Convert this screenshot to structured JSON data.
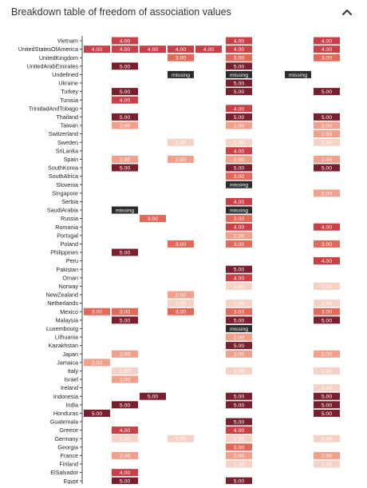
{
  "header": {
    "title": "Breakdown table of freedom of association values",
    "collapse_icon": "chevron-up-icon"
  },
  "colors": {
    "v1": "#f6d2c6",
    "v2": "#f2a08c",
    "v3": "#e2685a",
    "v4": "#c94046",
    "v5": "#7a1f2d",
    "missing": "#2b2b2b",
    "axis": "#444444",
    "label_text": "#ffffff"
  },
  "chart_data": {
    "type": "table",
    "title": "Breakdown table of freedom of association values",
    "missing_label": "missing",
    "rows": [
      {
        "country": "Vietnam",
        "values": [
          null,
          4,
          null,
          null,
          null,
          4,
          null,
          null,
          4
        ]
      },
      {
        "country": "UnitedStatesOfAmerica",
        "values": [
          4,
          4,
          4,
          4,
          4,
          4,
          null,
          null,
          4
        ]
      },
      {
        "country": "UnitedKingdom",
        "values": [
          null,
          null,
          null,
          3,
          null,
          3,
          null,
          null,
          3
        ]
      },
      {
        "country": "UnitedArabEmirates",
        "values": [
          null,
          5,
          null,
          null,
          null,
          5,
          null,
          null,
          null
        ]
      },
      {
        "country": "Undefined",
        "values": [
          null,
          null,
          null,
          "missing",
          null,
          "missing",
          null,
          "missing",
          null
        ]
      },
      {
        "country": "Ukraine",
        "values": [
          null,
          null,
          null,
          null,
          null,
          5,
          null,
          null,
          null
        ]
      },
      {
        "country": "Turkey",
        "values": [
          null,
          5,
          null,
          null,
          null,
          5,
          null,
          null,
          5
        ]
      },
      {
        "country": "Tunisia",
        "values": [
          null,
          4,
          null,
          null,
          null,
          null,
          null,
          null,
          null
        ]
      },
      {
        "country": "TrinidadAndTobago",
        "values": [
          null,
          null,
          null,
          null,
          null,
          4,
          null,
          null,
          null
        ]
      },
      {
        "country": "Thailand",
        "values": [
          null,
          5,
          null,
          null,
          null,
          5,
          null,
          null,
          5
        ]
      },
      {
        "country": "Taiwan",
        "values": [
          null,
          2,
          null,
          null,
          null,
          2,
          null,
          null,
          2
        ]
      },
      {
        "country": "Switzerland",
        "values": [
          null,
          null,
          null,
          null,
          null,
          null,
          null,
          null,
          2
        ]
      },
      {
        "country": "Sweden",
        "values": [
          null,
          null,
          null,
          1,
          null,
          1,
          null,
          null,
          1
        ]
      },
      {
        "country": "SriLanka",
        "values": [
          null,
          null,
          null,
          null,
          null,
          4,
          null,
          null,
          null
        ]
      },
      {
        "country": "Spain",
        "values": [
          null,
          2,
          null,
          2,
          null,
          2,
          null,
          null,
          2
        ]
      },
      {
        "country": "SouthKorea",
        "values": [
          null,
          5,
          null,
          null,
          null,
          5,
          null,
          null,
          5
        ]
      },
      {
        "country": "SouthAfrica",
        "values": [
          null,
          null,
          null,
          null,
          null,
          3,
          null,
          null,
          null
        ]
      },
      {
        "country": "Slovenia",
        "values": [
          null,
          null,
          null,
          null,
          null,
          "missing",
          null,
          null,
          null
        ]
      },
      {
        "country": "Singapore",
        "values": [
          null,
          null,
          null,
          null,
          null,
          null,
          null,
          null,
          2
        ]
      },
      {
        "country": "Serbia",
        "values": [
          null,
          null,
          null,
          null,
          null,
          4,
          null,
          null,
          null
        ]
      },
      {
        "country": "SaudiArabia",
        "values": [
          null,
          "missing",
          null,
          null,
          null,
          "missing",
          null,
          null,
          null
        ]
      },
      {
        "country": "Russia",
        "values": [
          null,
          null,
          3,
          null,
          null,
          3,
          null,
          null,
          null
        ]
      },
      {
        "country": "Romania",
        "values": [
          null,
          null,
          null,
          null,
          null,
          4,
          null,
          null,
          4
        ]
      },
      {
        "country": "Portugal",
        "values": [
          null,
          null,
          null,
          null,
          null,
          2,
          null,
          null,
          null
        ]
      },
      {
        "country": "Poland",
        "values": [
          null,
          null,
          null,
          3,
          null,
          3,
          null,
          null,
          3
        ]
      },
      {
        "country": "Philippines",
        "values": [
          null,
          5,
          null,
          null,
          null,
          null,
          null,
          null,
          null
        ]
      },
      {
        "country": "Peru",
        "values": [
          null,
          null,
          null,
          null,
          null,
          null,
          null,
          null,
          4
        ]
      },
      {
        "country": "Pakistan",
        "values": [
          null,
          null,
          null,
          null,
          null,
          5,
          null,
          null,
          null
        ]
      },
      {
        "country": "Oman",
        "values": [
          null,
          null,
          null,
          null,
          null,
          4,
          null,
          null,
          null
        ]
      },
      {
        "country": "Norway",
        "values": [
          null,
          null,
          null,
          null,
          null,
          1,
          null,
          null,
          1
        ]
      },
      {
        "country": "NewZealand",
        "values": [
          null,
          null,
          null,
          2,
          null,
          null,
          null,
          null,
          null
        ]
      },
      {
        "country": "Netherlands",
        "values": [
          null,
          null,
          null,
          1,
          null,
          1,
          null,
          null,
          1
        ]
      },
      {
        "country": "Mexico",
        "values": [
          3,
          3,
          null,
          3,
          null,
          3,
          null,
          null,
          3
        ]
      },
      {
        "country": "Malaysia",
        "values": [
          null,
          5,
          null,
          null,
          null,
          5,
          null,
          null,
          5
        ]
      },
      {
        "country": "Luxembourg",
        "values": [
          null,
          null,
          null,
          null,
          null,
          "missing",
          null,
          null,
          null
        ]
      },
      {
        "country": "Lithuania",
        "values": [
          null,
          null,
          null,
          null,
          null,
          2,
          null,
          null,
          null
        ]
      },
      {
        "country": "Kazakhstan",
        "values": [
          null,
          null,
          null,
          null,
          null,
          5,
          null,
          null,
          null
        ]
      },
      {
        "country": "Japan",
        "values": [
          null,
          2,
          null,
          null,
          null,
          2,
          null,
          null,
          2
        ]
      },
      {
        "country": "Jamaica",
        "values": [
          2,
          null,
          null,
          null,
          null,
          null,
          null,
          null,
          null
        ]
      },
      {
        "country": "Italy",
        "values": [
          null,
          1,
          null,
          null,
          null,
          1,
          null,
          null,
          1
        ]
      },
      {
        "country": "Israel",
        "values": [
          null,
          2,
          null,
          null,
          null,
          null,
          null,
          null,
          null
        ]
      },
      {
        "country": "Ireland",
        "values": [
          null,
          null,
          null,
          null,
          null,
          null,
          null,
          null,
          1
        ]
      },
      {
        "country": "Indonesia",
        "values": [
          null,
          null,
          5,
          null,
          null,
          5,
          null,
          null,
          5
        ]
      },
      {
        "country": "India",
        "values": [
          null,
          5,
          null,
          null,
          null,
          5,
          null,
          null,
          5
        ]
      },
      {
        "country": "Honduras",
        "values": [
          5,
          null,
          null,
          null,
          null,
          null,
          null,
          null,
          5
        ]
      },
      {
        "country": "Guatemala",
        "values": [
          null,
          null,
          null,
          null,
          null,
          5,
          null,
          null,
          null
        ]
      },
      {
        "country": "Greece",
        "values": [
          null,
          4,
          null,
          null,
          null,
          4,
          null,
          null,
          null
        ]
      },
      {
        "country": "Germany",
        "values": [
          null,
          1,
          null,
          1,
          null,
          1,
          null,
          null,
          1
        ]
      },
      {
        "country": "Georgia",
        "values": [
          null,
          null,
          null,
          null,
          null,
          3,
          null,
          null,
          null
        ]
      },
      {
        "country": "France",
        "values": [
          null,
          2,
          null,
          null,
          null,
          2,
          null,
          null,
          2
        ]
      },
      {
        "country": "Finland",
        "values": [
          null,
          null,
          null,
          null,
          null,
          1,
          null,
          null,
          1
        ]
      },
      {
        "country": "ElSalvador",
        "values": [
          null,
          4,
          null,
          null,
          null,
          null,
          null,
          null,
          null
        ]
      },
      {
        "country": "Egypt",
        "values": [
          null,
          5,
          null,
          null,
          null,
          5,
          null,
          null,
          null
        ]
      }
    ]
  }
}
